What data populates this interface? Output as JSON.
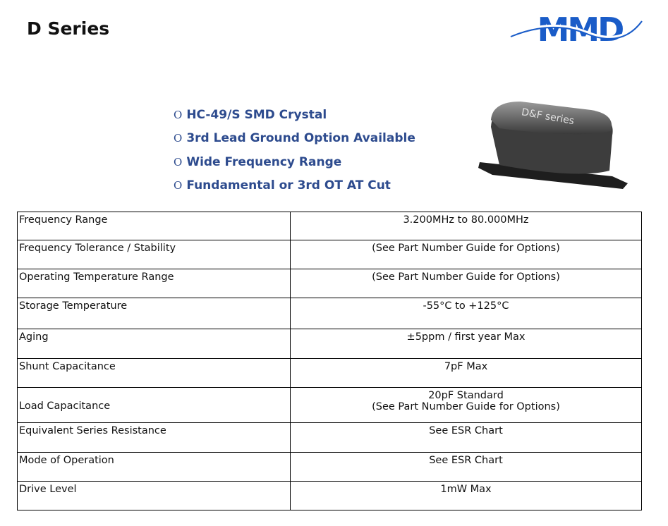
{
  "header": {
    "title": "D Series",
    "logo_text": "MMD"
  },
  "features": [
    "HC-49/S SMD Crystal",
    "3rd Lead Ground Option Available",
    "Wide Frequency Range",
    "Fundamental or 3rd OT AT Cut"
  ],
  "bullet_glyph": "O",
  "product_image": {
    "label": "D&F series"
  },
  "colors": {
    "feature_text": "#2d4b8e",
    "logo": "#1a5cc8"
  },
  "specs": [
    {
      "param": "Frequency Range",
      "value": "3.200MHz to 80.000MHz"
    },
    {
      "param": "Frequency Tolerance / Stability",
      "value": "(See Part Number Guide for Options)"
    },
    {
      "param": "Operating Temperature Range",
      "value": "(See Part Number Guide for Options)"
    },
    {
      "param": "Storage Temperature",
      "value": "-55°C to +125°C"
    },
    {
      "param": "Aging",
      "value": "±5ppm / first year Max"
    },
    {
      "param": "Shunt Capacitance",
      "value": "7pF Max"
    },
    {
      "param": "Load Capacitance",
      "value": "20pF Standard",
      "value2": "(See Part Number Guide for Options)"
    },
    {
      "param": "Equivalent Series Resistance",
      "value": "See ESR Chart"
    },
    {
      "param": "Mode of Operation",
      "value": "See ESR Chart"
    },
    {
      "param": "Drive Level",
      "value": "1mW Max"
    }
  ]
}
